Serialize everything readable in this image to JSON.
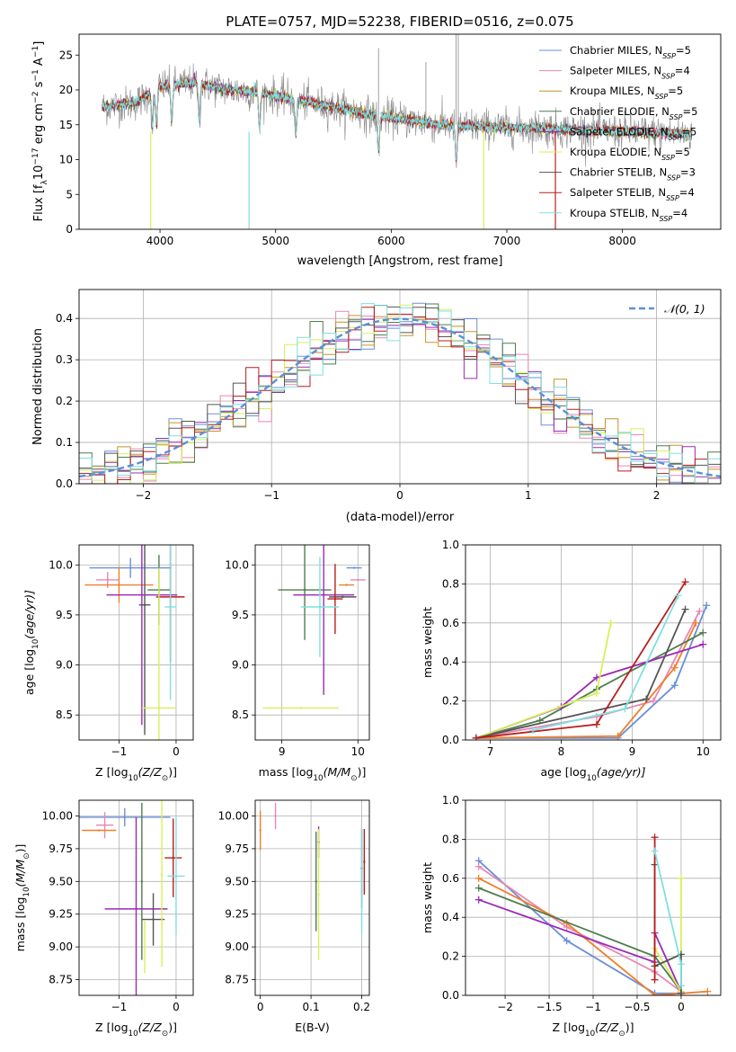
{
  "colors": {
    "Chabrier MILES": "#6a8fd8",
    "Salpeter MILES": "#e887b5",
    "Kroupa MILES": "#c8922a",
    "Chabrier ELODIE": "#4f7d4f",
    "Salpeter ELODIE": "#9b2ab4",
    "Kroupa ELODIE": "#d9ef5a",
    "Chabrier STELIB": "#555555",
    "Salpeter STELIB": "#b81f1f",
    "Kroupa STELIB": "#7fe0df",
    "Kroupa MILES Z": "#f07f2a",
    "normal": "#5b8fd9",
    "grid": "#b0b0b0"
  },
  "chart_data": [
    {
      "type": "line",
      "panel": "spectrum",
      "title": "PLATE=0757, MJD=52238, FIBERID=0516, z=0.075",
      "xlabel": "wavelength [Angstrom, rest frame]",
      "ylabel_parts": [
        "Flux [f",
        "λ",
        "10",
        "−17",
        " erg cm",
        "−2",
        " s",
        "−1",
        " A",
        "−1",
        "]"
      ],
      "xlim": [
        3300,
        8850
      ],
      "ylim": [
        0,
        28
      ],
      "xticks": [
        4000,
        5000,
        6000,
        7000,
        8000
      ],
      "yticks": [
        0,
        5,
        10,
        15,
        20,
        25
      ],
      "continuum": {
        "x": [
          3500,
          3800,
          4000,
          4300,
          4600,
          4900,
          5200,
          5500,
          5800,
          6100,
          6400,
          6700,
          7000,
          7300,
          7500,
          8000,
          8500
        ],
        "y": [
          17.5,
          18.2,
          20.5,
          21.0,
          20.0,
          19.5,
          18.5,
          17.5,
          16.5,
          15.8,
          15.0,
          14.8,
          14.6,
          14.5,
          14.3,
          14.0,
          13.7
        ]
      },
      "legend": [
        {
          "name": "Chabrier MILES",
          "nssp": "5"
        },
        {
          "name": "Salpeter MILES",
          "nssp": "4"
        },
        {
          "name": "Kroupa MILES",
          "nssp": "5"
        },
        {
          "name": "Chabrier ELODIE",
          "nssp": "5"
        },
        {
          "name": "Salpeter ELODIE",
          "nssp": "5"
        },
        {
          "name": "Kroupa ELODIE",
          "nssp": "5"
        },
        {
          "name": "Chabrier STELIB",
          "nssp": "3"
        },
        {
          "name": "Salpeter STELIB",
          "nssp": "4"
        },
        {
          "name": "Kroupa STELIB",
          "nssp": "4"
        }
      ],
      "legend_nssp_label": [
        "N",
        "SSP",
        "="
      ]
    },
    {
      "type": "bar",
      "panel": "residuals",
      "xlabel": "(data-model)/error",
      "ylabel": "Normed distribution",
      "xlim": [
        -2.5,
        2.5
      ],
      "ylim": [
        0,
        0.47
      ],
      "xticks": [
        -2,
        -1,
        0,
        1,
        2
      ],
      "yticks": [
        0.0,
        0.1,
        0.2,
        0.3,
        0.4
      ],
      "legend": "𝒩(0, 1)",
      "bin_width": 0.1
    },
    {
      "type": "scatter",
      "panel": "Z-age",
      "xlabel_parts": [
        "Z [log",
        "10",
        "(Z/Z",
        "⊙",
        ")]"
      ],
      "ylabel_parts": [
        "age  [log",
        "10",
        "(age/yr)]"
      ],
      "xlim": [
        -1.7,
        0.3
      ],
      "ylim": [
        8.25,
        10.2
      ],
      "xticks": [
        -1,
        0
      ],
      "yticks": [
        8.5,
        9.0,
        9.5,
        10.0
      ],
      "points": [
        {
          "series": "Chabrier MILES",
          "x": -0.8,
          "y": 9.97,
          "xerr": 0.72,
          "yerr": 0.1
        },
        {
          "series": "Salpeter MILES",
          "x": -1.2,
          "y": 9.85,
          "xerr": 0.2,
          "yerr": 0.08
        },
        {
          "series": "Kroupa MILES Z",
          "x": -1.0,
          "y": 9.8,
          "xerr": 0.6,
          "yerr": 0.18
        },
        {
          "series": "Chabrier ELODIE",
          "x": -0.3,
          "y": 9.75,
          "xerr": 0.2,
          "yerr": 0.35
        },
        {
          "series": "Salpeter ELODIE",
          "x": -0.6,
          "y": 9.7,
          "xerr": 0.62,
          "yerr": 1.3
        },
        {
          "series": "Chabrier STELIB",
          "x": -0.55,
          "y": 9.6,
          "xerr": 0.1,
          "yerr": 1.3
        },
        {
          "series": "Salpeter STELIB",
          "x": -0.1,
          "y": 9.68,
          "xerr": 0.25,
          "yerr": 0.65
        },
        {
          "series": "Kroupa STELIB",
          "x": -0.1,
          "y": 9.58,
          "xerr": 0.1,
          "yerr": 0.93
        },
        {
          "series": "Kroupa ELODIE",
          "x": -0.3,
          "y": 8.57,
          "xerr": 0.3,
          "yerr": 1.4
        }
      ]
    },
    {
      "type": "scatter",
      "panel": "mass-age",
      "xlabel_parts": [
        "mass [log",
        "10",
        "(M/M",
        "⊙",
        ")]"
      ],
      "xlim": [
        8.65,
        10.15
      ],
      "ylim": [
        8.25,
        10.2
      ],
      "xticks": [
        9,
        10
      ],
      "yticks": [
        8.5,
        9.0,
        9.5,
        10.0
      ],
      "points": [
        {
          "series": "Chabrier MILES",
          "x": 9.95,
          "y": 9.97,
          "xerr": 0.1,
          "yerr": 0.0
        },
        {
          "series": "Salpeter MILES",
          "x": 10.0,
          "y": 9.85,
          "xerr": 0.1,
          "yerr": 0.0
        },
        {
          "series": "Kroupa MILES Z",
          "x": 9.85,
          "y": 9.8,
          "xerr": 0.1,
          "yerr": 0.0
        },
        {
          "series": "Chabrier ELODIE",
          "x": 9.3,
          "y": 9.75,
          "xerr": 0.35,
          "yerr": 0.5
        },
        {
          "series": "Salpeter ELODIE",
          "x": 9.55,
          "y": 9.7,
          "xerr": 0.4,
          "yerr": 1.0
        },
        {
          "series": "Chabrier STELIB",
          "x": 9.8,
          "y": 9.68,
          "xerr": 0.18,
          "yerr": 0.0
        },
        {
          "series": "Salpeter STELIB",
          "x": 9.7,
          "y": 9.66,
          "xerr": 0.1,
          "yerr": 0.35
        },
        {
          "series": "Kroupa STELIB",
          "x": 9.5,
          "y": 9.58,
          "xerr": 0.25,
          "yerr": 0.5
        },
        {
          "series": "Kroupa ELODIE",
          "x": 9.25,
          "y": 8.57,
          "xerr": 0.5,
          "yerr": 0.0
        }
      ]
    },
    {
      "type": "line",
      "panel": "age-weight",
      "xlabel_parts": [
        "age  [log",
        "10",
        "(age/yr)]"
      ],
      "ylabel": "mass weight",
      "xlim": [
        6.65,
        10.25
      ],
      "ylim": [
        0,
        1.0
      ],
      "xticks": [
        7,
        8,
        9,
        10
      ],
      "yticks": [
        0.0,
        0.2,
        0.4,
        0.6,
        0.8,
        1.0
      ],
      "series": [
        {
          "name": "Chabrier MILES",
          "x": [
            6.8,
            8.8,
            9.6,
            10.05
          ],
          "y": [
            0.01,
            0.01,
            0.28,
            0.69
          ]
        },
        {
          "name": "Salpeter MILES",
          "x": [
            6.8,
            8.5,
            9.3,
            9.95
          ],
          "y": [
            0.01,
            0.12,
            0.2,
            0.66
          ]
        },
        {
          "name": "Kroupa MILES Z",
          "x": [
            6.8,
            8.8,
            9.6,
            9.9
          ],
          "y": [
            0.01,
            0.02,
            0.37,
            0.6
          ]
        },
        {
          "name": "Chabrier ELODIE",
          "x": [
            6.8,
            7.7,
            8.5,
            10.0
          ],
          "y": [
            0.01,
            0.1,
            0.26,
            0.55
          ]
        },
        {
          "name": "Salpeter ELODIE",
          "x": [
            6.8,
            8.0,
            8.5,
            10.0
          ],
          "y": [
            0.01,
            0.17,
            0.32,
            0.49
          ]
        },
        {
          "name": "Kroupa ELODIE",
          "x": [
            6.8,
            8.5,
            8.7
          ],
          "y": [
            0.01,
            0.24,
            0.6
          ]
        },
        {
          "name": "Chabrier STELIB",
          "x": [
            6.8,
            9.2,
            9.75
          ],
          "y": [
            0.01,
            0.21,
            0.67
          ]
        },
        {
          "name": "Salpeter STELIB",
          "x": [
            6.8,
            8.5,
            9.75
          ],
          "y": [
            0.01,
            0.08,
            0.81
          ]
        },
        {
          "name": "Kroupa STELIB",
          "x": [
            7.6,
            8.9,
            9.65
          ],
          "y": [
            0.05,
            0.16,
            0.74
          ]
        }
      ]
    },
    {
      "type": "scatter",
      "panel": "Z-mass",
      "xlabel_parts": [
        "Z [log",
        "10",
        "(Z/Z",
        "⊙",
        ")]"
      ],
      "ylabel_parts": [
        "mass [log",
        "10",
        "(M/M",
        "⊙",
        ")]"
      ],
      "xlim": [
        -1.7,
        0.3
      ],
      "ylim": [
        8.63,
        10.12
      ],
      "xticks": [
        -1,
        0
      ],
      "yticks": [
        8.75,
        9.0,
        9.25,
        9.5,
        9.75,
        10.0
      ],
      "points": [
        {
          "series": "Chabrier MILES",
          "x": -0.9,
          "y": 9.99,
          "xerr": 0.8,
          "yerr": 0.07
        },
        {
          "series": "Salpeter MILES",
          "x": -1.25,
          "y": 9.93,
          "xerr": 0.15,
          "yerr": 0.1
        },
        {
          "series": "Kroupa MILES Z",
          "x": -1.35,
          "y": 9.89,
          "xerr": 0.3,
          "yerr": 0.0
        },
        {
          "series": "Chabrier ELODIE",
          "x": -0.6,
          "y": 9.5,
          "xerr": 0.0,
          "yerr": 0.6
        },
        {
          "series": "Salpeter ELODIE",
          "x": -0.7,
          "y": 9.29,
          "xerr": 0.55,
          "yerr": 0.7
        },
        {
          "series": "Chabrier STELIB",
          "x": -0.4,
          "y": 9.21,
          "xerr": 0.2,
          "yerr": 0.2
        },
        {
          "series": "Salpeter STELIB",
          "x": -0.05,
          "y": 9.68,
          "xerr": 0.15,
          "yerr": 0.3
        },
        {
          "series": "Kroupa STELIB",
          "x": 0.0,
          "y": 9.54,
          "xerr": 0.15,
          "yerr": 0.45
        },
        {
          "series": "Kroupa ELODIE",
          "x": -0.55,
          "y": 9.0,
          "xerr": 0.0,
          "yerr": 0.2
        },
        {
          "series": "Kroupa ELODIE",
          "x": -0.25,
          "y": 9.55,
          "xerr": 0.0,
          "yerr": 0.7
        }
      ]
    },
    {
      "type": "scatter",
      "panel": "EBV-mass",
      "xlabel": "E(B-V)",
      "xlim": [
        -0.01,
        0.215
      ],
      "ylim": [
        8.63,
        10.12
      ],
      "xticks": [
        0.0,
        0.1,
        0.2
      ],
      "yticks": [
        8.75,
        9.0,
        9.25,
        9.5,
        9.75,
        10.0
      ],
      "points": [
        {
          "series": "Kroupa MILES Z",
          "x": 0.0,
          "y": 9.89,
          "xerr": 0,
          "yerr": 0.15
        },
        {
          "series": "Salpeter MILES",
          "x": 0.03,
          "y": 10.0,
          "xerr": 0,
          "yerr": 0.1
        },
        {
          "series": "Chabrier ELODIE",
          "x": 0.11,
          "y": 9.5,
          "xerr": 0,
          "yerr": 0.38
        },
        {
          "series": "Salpeter ELODIE",
          "x": 0.115,
          "y": 9.8,
          "xerr": 0,
          "yerr": 0.12
        },
        {
          "series": "Kroupa ELODIE",
          "x": 0.115,
          "y": 9.4,
          "xerr": 0,
          "yerr": 0.5
        },
        {
          "series": "Chabrier STELIB",
          "x": 0.2,
          "y": 9.6,
          "xerr": 0,
          "yerr": 0.3
        },
        {
          "series": "Salpeter STELIB",
          "x": 0.205,
          "y": 9.65,
          "xerr": 0,
          "yerr": 0.25
        },
        {
          "series": "Kroupa STELIB",
          "x": 0.2,
          "y": 9.5,
          "xerr": 0,
          "yerr": 0.4
        }
      ]
    },
    {
      "type": "line",
      "panel": "Z-weight",
      "xlabel_parts": [
        "Z [log",
        "10",
        "(Z/Z",
        "⊙",
        ")]"
      ],
      "ylabel": "mass weight",
      "xlim": [
        -2.45,
        0.45
      ],
      "ylim": [
        0,
        1.0
      ],
      "xticks": [
        -2.0,
        -1.5,
        -1.0,
        -0.5,
        0.0
      ],
      "series": [
        {
          "name": "Chabrier MILES",
          "x": [
            -2.3,
            -1.3,
            -0.3,
            0.0
          ],
          "y": [
            0.69,
            0.28,
            0.01,
            0.01
          ]
        },
        {
          "name": "Salpeter MILES",
          "x": [
            -2.3,
            -1.3,
            -0.3,
            0.0
          ],
          "y": [
            0.66,
            0.35,
            0.12,
            0.02
          ]
        },
        {
          "name": "Kroupa MILES Z",
          "x": [
            -2.3,
            -1.3,
            -0.3,
            0.3
          ],
          "y": [
            0.6,
            0.37,
            0.0,
            0.02
          ]
        },
        {
          "name": "Chabrier ELODIE",
          "x": [
            -2.3,
            -0.3,
            0.0
          ],
          "y": [
            0.55,
            0.2,
            0.02
          ]
        },
        {
          "name": "Salpeter ELODIE",
          "x": [
            -2.3,
            -0.3,
            -0.3,
            0.0
          ],
          "y": [
            0.49,
            0.17,
            0.32,
            0.02
          ]
        },
        {
          "name": "Kroupa ELODIE",
          "x": [
            -0.3,
            0.0,
            0.0
          ],
          "y": [
            0.24,
            0.02,
            0.6
          ]
        },
        {
          "name": "Chabrier STELIB",
          "x": [
            -0.3,
            -0.3,
            0.0,
            0.0
          ],
          "y": [
            0.67,
            0.15,
            0.21,
            0.01
          ]
        },
        {
          "name": "Salpeter STELIB",
          "x": [
            -0.3,
            -0.3
          ],
          "y": [
            0.81,
            0.08
          ]
        },
        {
          "name": "Kroupa STELIB",
          "x": [
            -0.3,
            0.0,
            0.0
          ],
          "y": [
            0.74,
            0.16,
            0.05
          ]
        }
      ]
    }
  ]
}
